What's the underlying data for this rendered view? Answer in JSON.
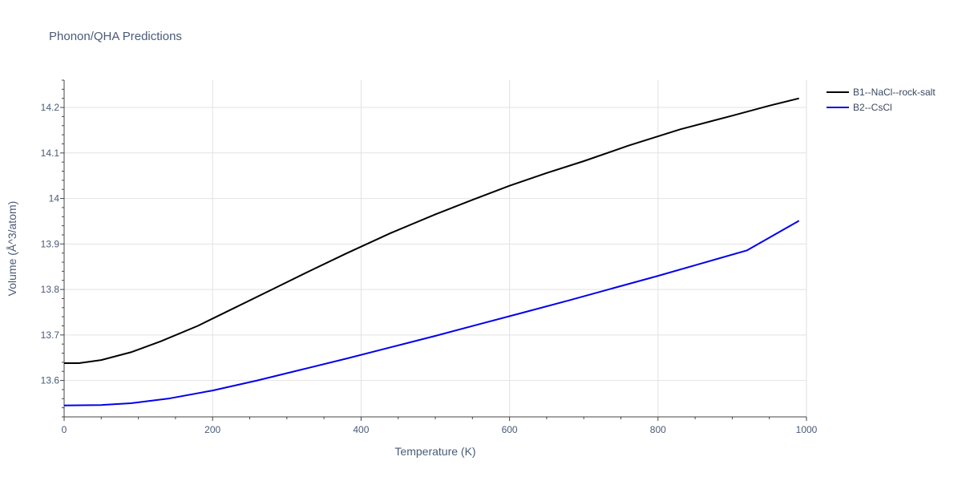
{
  "chart_data": {
    "type": "line",
    "title": "Phonon/QHA Predictions",
    "xlabel": "Temperature (K)",
    "ylabel": "Volume (Å^3/atom)",
    "xlim": [
      0,
      1000
    ],
    "ylim": [
      13.52,
      14.26
    ],
    "xticks": [
      0,
      200,
      400,
      600,
      800,
      1000
    ],
    "xtick_labels": [
      "0",
      "200",
      "400",
      "600",
      "800",
      "1000"
    ],
    "yticks": [
      13.6,
      13.7,
      13.8,
      13.9,
      14.0,
      14.1,
      14.2
    ],
    "ytick_labels": [
      "13.6",
      "13.7",
      "13.8",
      "13.9",
      "14",
      "14.1",
      "14.2"
    ],
    "grid": true,
    "legend_position": "top-right",
    "series": [
      {
        "name": "B1--NaCl--rock-salt",
        "color": "#000000",
        "x": [
          0,
          20,
          50,
          90,
          130,
          180,
          230,
          280,
          330,
          380,
          440,
          500,
          550,
          600,
          650,
          700,
          760,
          830,
          900,
          950,
          990
        ],
        "y": [
          13.638,
          13.638,
          13.645,
          13.662,
          13.686,
          13.72,
          13.76,
          13.8,
          13.84,
          13.879,
          13.924,
          13.965,
          13.997,
          14.028,
          14.056,
          14.082,
          14.116,
          14.152,
          14.182,
          14.204,
          14.22
        ]
      },
      {
        "name": "B2--CsCl",
        "color": "#0000ee",
        "x": [
          0,
          50,
          90,
          140,
          200,
          260,
          320,
          380,
          440,
          500,
          560,
          620,
          680,
          740,
          800,
          860,
          920,
          990
        ],
        "y": [
          13.545,
          13.546,
          13.55,
          13.56,
          13.578,
          13.6,
          13.624,
          13.648,
          13.673,
          13.698,
          13.724,
          13.75,
          13.776,
          13.803,
          13.83,
          13.858,
          13.886,
          13.951
        ]
      }
    ]
  }
}
